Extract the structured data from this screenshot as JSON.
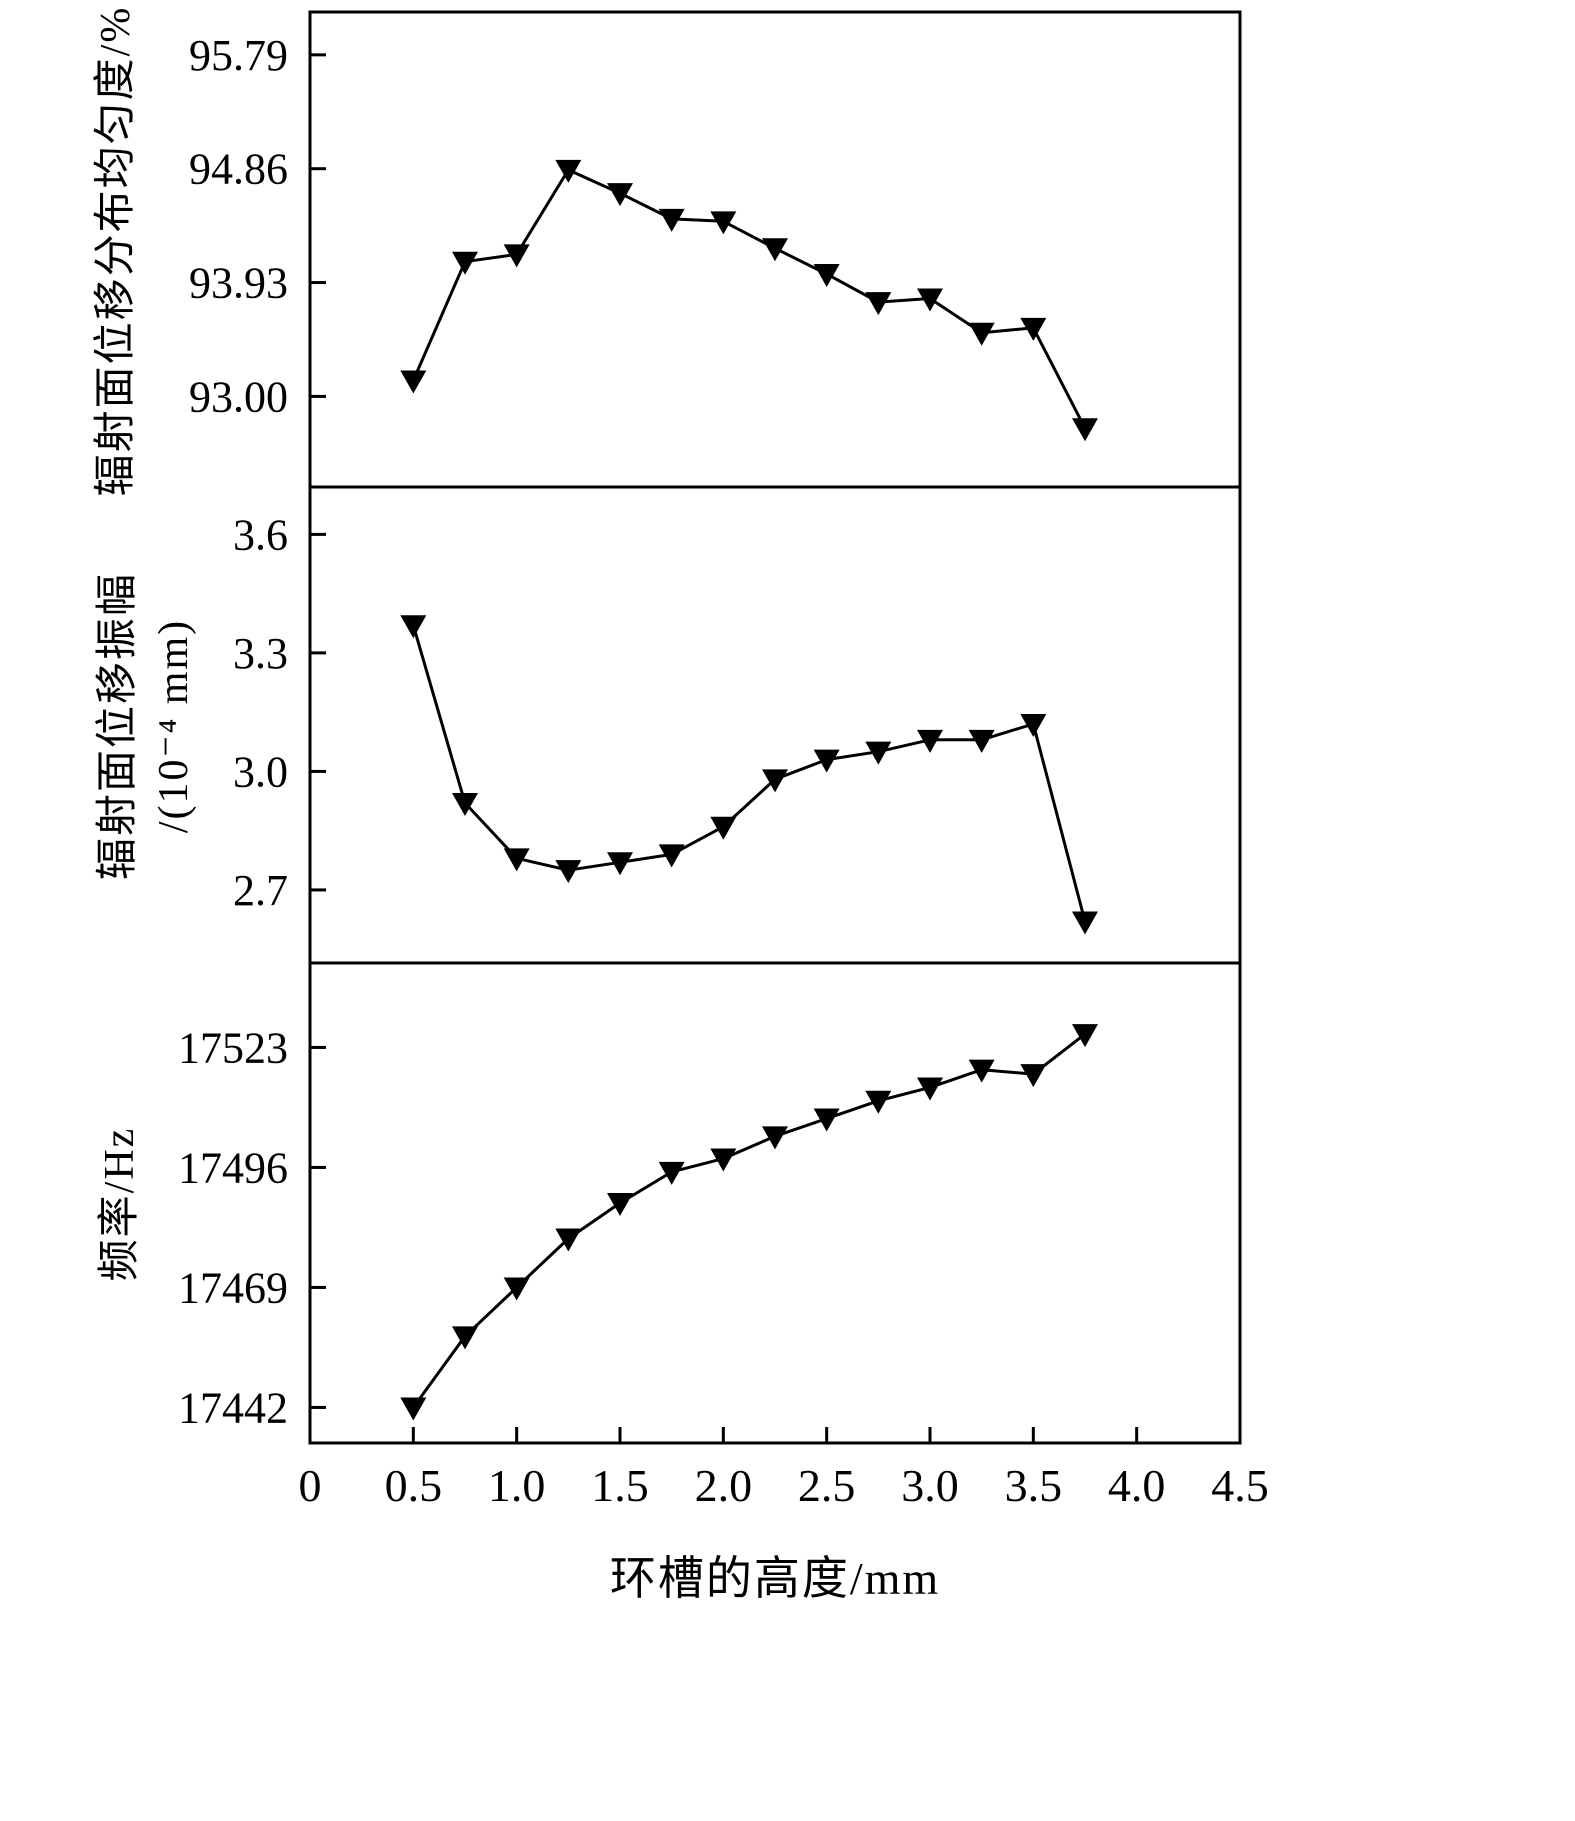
{
  "figure": {
    "background": "#ffffff",
    "axis_color": "#000000",
    "line_color": "#000000",
    "marker_color": "#000000",
    "xlabel": "环槽的高度/mm",
    "xlim": [
      0,
      4.5
    ],
    "xtick_values": [
      0,
      0.5,
      1.0,
      1.5,
      2.0,
      2.5,
      3.0,
      3.5,
      4.0,
      4.5
    ],
    "xtick_labels": [
      "0",
      "0.5",
      "1.0",
      "1.5",
      "2.0",
      "2.5",
      "3.0",
      "3.5",
      "4.0",
      "4.5"
    ],
    "legend": "none",
    "grid": false
  },
  "chart_data": [
    {
      "type": "line",
      "marker": "triangle-down",
      "title": "",
      "ylabel": "辐射面位移分布均匀度/%",
      "ylabel_lines": [
        "辐射面位移分布均匀度/%"
      ],
      "xlabel": "环槽的高度/mm",
      "x": [
        0.5,
        0.75,
        1.0,
        1.25,
        1.5,
        1.75,
        2.0,
        2.25,
        2.5,
        2.75,
        3.0,
        3.25,
        3.5,
        3.75
      ],
      "values": [
        93.13,
        94.1,
        94.16,
        94.85,
        94.66,
        94.45,
        94.43,
        94.21,
        94.0,
        93.77,
        93.8,
        93.52,
        93.56,
        92.74
      ],
      "ytick_values": [
        93.0,
        93.93,
        94.86,
        95.79
      ],
      "ytick_labels": [
        "93.00",
        "93.93",
        "94.86",
        "95.79"
      ],
      "ylim": [
        92.26,
        96.14
      ],
      "xlim": [
        0,
        4.5
      ]
    },
    {
      "type": "line",
      "marker": "triangle-down",
      "title": "",
      "ylabel": "辐射面位移振幅/(10⁻⁴ mm)",
      "ylabel_lines": [
        "辐射面位移振幅",
        "/(10⁻⁴ mm)"
      ],
      "xlabel": "环槽的高度/mm",
      "x": [
        0.5,
        0.75,
        1.0,
        1.25,
        1.5,
        1.75,
        2.0,
        2.25,
        2.5,
        2.75,
        3.0,
        3.25,
        3.5,
        3.75
      ],
      "values": [
        3.37,
        2.92,
        2.78,
        2.75,
        2.77,
        2.79,
        2.86,
        2.98,
        3.03,
        3.05,
        3.08,
        3.08,
        3.12,
        2.62
      ],
      "ytick_values": [
        2.7,
        3.0,
        3.3,
        3.6
      ],
      "ytick_labels": [
        "2.7",
        "3.0",
        "3.3",
        "3.6"
      ],
      "ylim": [
        2.515,
        3.72
      ],
      "xlim": [
        0,
        4.5
      ]
    },
    {
      "type": "line",
      "marker": "triangle-down",
      "title": "",
      "ylabel": "频率/Hz",
      "ylabel_lines": [
        "频率/Hz"
      ],
      "xlabel": "环槽的高度/mm",
      "x": [
        0.5,
        0.75,
        1.0,
        1.25,
        1.5,
        1.75,
        2.0,
        2.25,
        2.5,
        2.75,
        3.0,
        3.25,
        3.5,
        3.75
      ],
      "values": [
        17442,
        17458,
        17469,
        17480,
        17488,
        17495,
        17498,
        17503,
        17507,
        17511,
        17514,
        17518,
        17517,
        17526
      ],
      "ytick_values": [
        17442,
        17469,
        17496,
        17523
      ],
      "ytick_labels": [
        "17442",
        "17469",
        "17496",
        "17523"
      ],
      "ylim": [
        17434,
        17542
      ],
      "xlim": [
        0,
        4.5
      ]
    }
  ]
}
